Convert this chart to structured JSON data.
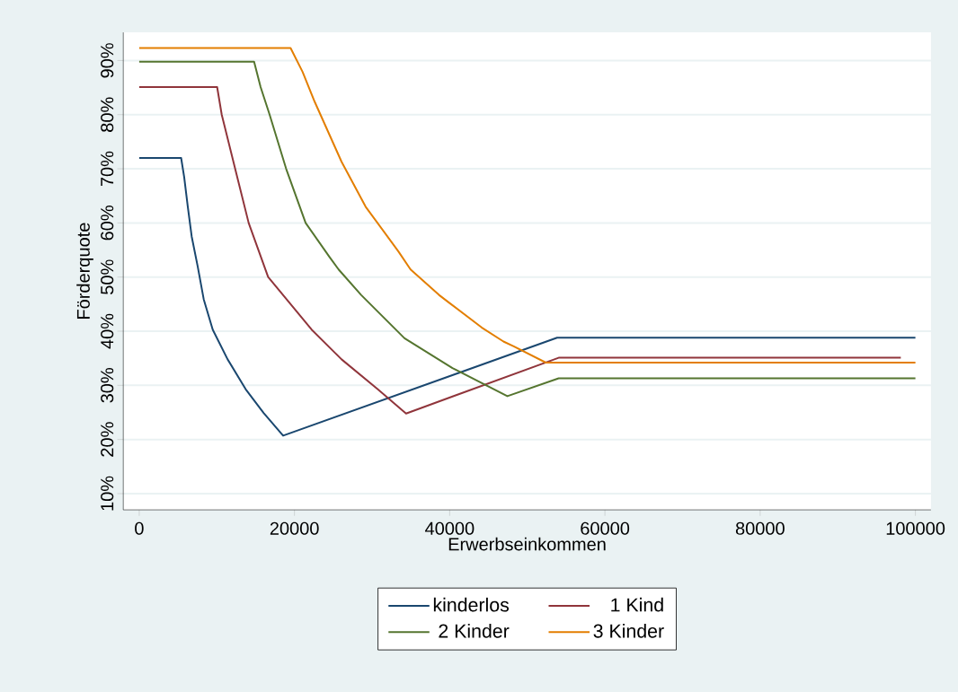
{
  "chart_data": {
    "type": "line",
    "xlabel": "Erwerbseinkommen",
    "ylabel": "Förderquote",
    "xlim": [
      -2050,
      102000
    ],
    "ylim": [
      7,
      95.2
    ],
    "xticks": [
      0,
      20000,
      40000,
      60000,
      80000,
      100000
    ],
    "yticks": [
      {
        "value": 10,
        "label": "10%"
      },
      {
        "value": 20,
        "label": "20%"
      },
      {
        "value": 30,
        "label": "30%"
      },
      {
        "value": 40,
        "label": "40%"
      },
      {
        "value": 50,
        "label": "50%"
      },
      {
        "value": 60,
        "label": "60%"
      },
      {
        "value": 70,
        "label": "70%"
      },
      {
        "value": 80,
        "label": "80%"
      },
      {
        "value": 90,
        "label": "90%"
      }
    ],
    "grid": "y",
    "legend": "bottom",
    "series": [
      {
        "name": "kinderlos",
        "color": "#1a476f",
        "x": [
          0,
          5400,
          5790,
          6260,
          6760,
          7530,
          8310,
          9470,
          11390,
          13710,
          16030,
          18540,
          53840,
          100000
        ],
        "values": [
          72.0,
          72.0,
          68.5,
          63.0,
          57.5,
          52.0,
          45.9,
          40.3,
          34.8,
          29.3,
          24.9,
          20.7,
          38.8,
          38.8
        ]
      },
      {
        "name": "1 Kind",
        "color": "#90353b",
        "x": [
          0,
          10040,
          10630,
          12360,
          14100,
          16610,
          22210,
          26070,
          30710,
          34380,
          54040,
          98120
        ],
        "values": [
          85.1,
          85.1,
          80.0,
          70.0,
          60.0,
          50.0,
          40.3,
          34.8,
          29.3,
          24.8,
          35.1,
          35.1
        ]
      },
      {
        "name": "2 Kinder",
        "color": "#55752f",
        "x": [
          0,
          14800,
          15640,
          16800,
          18930,
          21440,
          24520,
          25690,
          28590,
          34180,
          40360,
          47430,
          54040,
          100000
        ],
        "values": [
          89.8,
          89.8,
          85.1,
          80.0,
          70.0,
          60.0,
          53.7,
          51.4,
          46.7,
          38.7,
          33.2,
          28.0,
          31.3,
          31.3
        ]
      },
      {
        "name": "3 Kinder",
        "color": "#e37e00",
        "x": [
          0,
          19500,
          21050,
          22600,
          26070,
          29170,
          33410,
          34960,
          38620,
          39980,
          44110,
          46930,
          48250,
          52390,
          100000
        ],
        "values": [
          92.3,
          92.3,
          87.9,
          82.4,
          71.3,
          63.0,
          54.7,
          51.4,
          46.7,
          45.2,
          40.7,
          38.1,
          37.2,
          34.2,
          34.2
        ]
      }
    ]
  }
}
